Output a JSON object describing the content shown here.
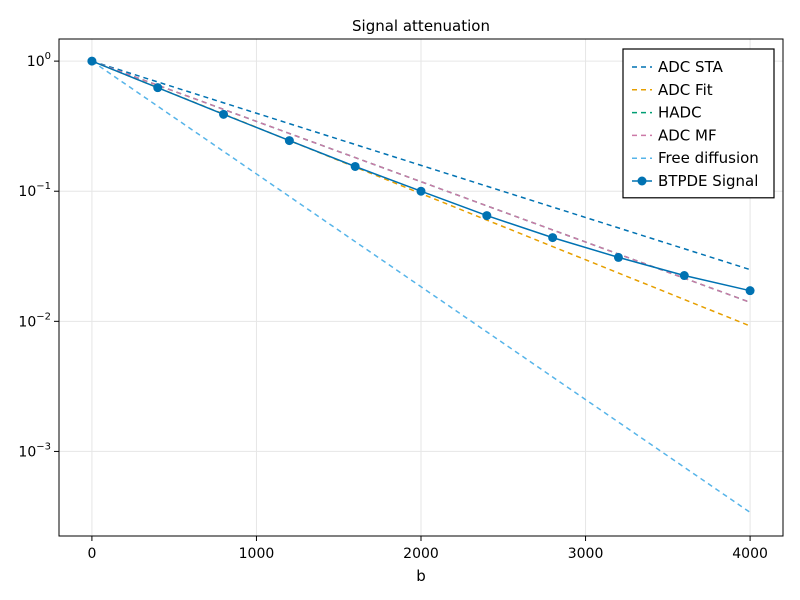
{
  "chart_data": {
    "type": "line",
    "title": "Signal attenuation",
    "xlabel": "b",
    "ylabel": "",
    "xlim": [
      -200,
      4200
    ],
    "ylog": true,
    "ylim_log10": [
      -3.65,
      0.17
    ],
    "xticks": [
      0,
      1000,
      2000,
      3000,
      4000
    ],
    "xtick_labels": [
      "0",
      "1000",
      "2000",
      "3000",
      "4000"
    ],
    "yticks": [
      1,
      0.1,
      0.01,
      0.001
    ],
    "ytick_labels": [
      {
        "base": "10",
        "exp": "0"
      },
      {
        "base": "10",
        "exp": "−1"
      },
      {
        "base": "10",
        "exp": "−2"
      },
      {
        "base": "10",
        "exp": "−3"
      }
    ],
    "grid": true,
    "legend_position": "top-right",
    "series": [
      {
        "name": "ADC STA",
        "style": "dashed",
        "color": "#0072b2",
        "x": [
          0,
          4000
        ],
        "y": [
          1.0,
          0.025
        ]
      },
      {
        "name": "ADC Fit",
        "style": "dashed",
        "color": "#e69f00",
        "x": [
          0,
          4000
        ],
        "y": [
          1.0,
          0.0092
        ]
      },
      {
        "name": "HADC",
        "style": "dashed",
        "color": "#009e73",
        "x": [
          0,
          4000
        ],
        "y": [
          1.0,
          0.014
        ]
      },
      {
        "name": "ADC MF",
        "style": "dashed",
        "color": "#cc79a7",
        "x": [
          0,
          4000
        ],
        "y": [
          1.0,
          0.014
        ]
      },
      {
        "name": "Free diffusion",
        "style": "dashed",
        "color": "#56b4e9",
        "x": [
          0,
          4000
        ],
        "y": [
          1.0,
          0.00034
        ]
      },
      {
        "name": "BTPDE Signal",
        "style": "solid-markers",
        "color": "#0072b2",
        "x": [
          0,
          400,
          800,
          1200,
          1600,
          2000,
          2400,
          2800,
          3200,
          3600,
          4000
        ],
        "y": [
          1.0,
          0.625,
          0.39,
          0.245,
          0.155,
          0.1,
          0.065,
          0.044,
          0.031,
          0.0225,
          0.0172
        ]
      }
    ]
  }
}
